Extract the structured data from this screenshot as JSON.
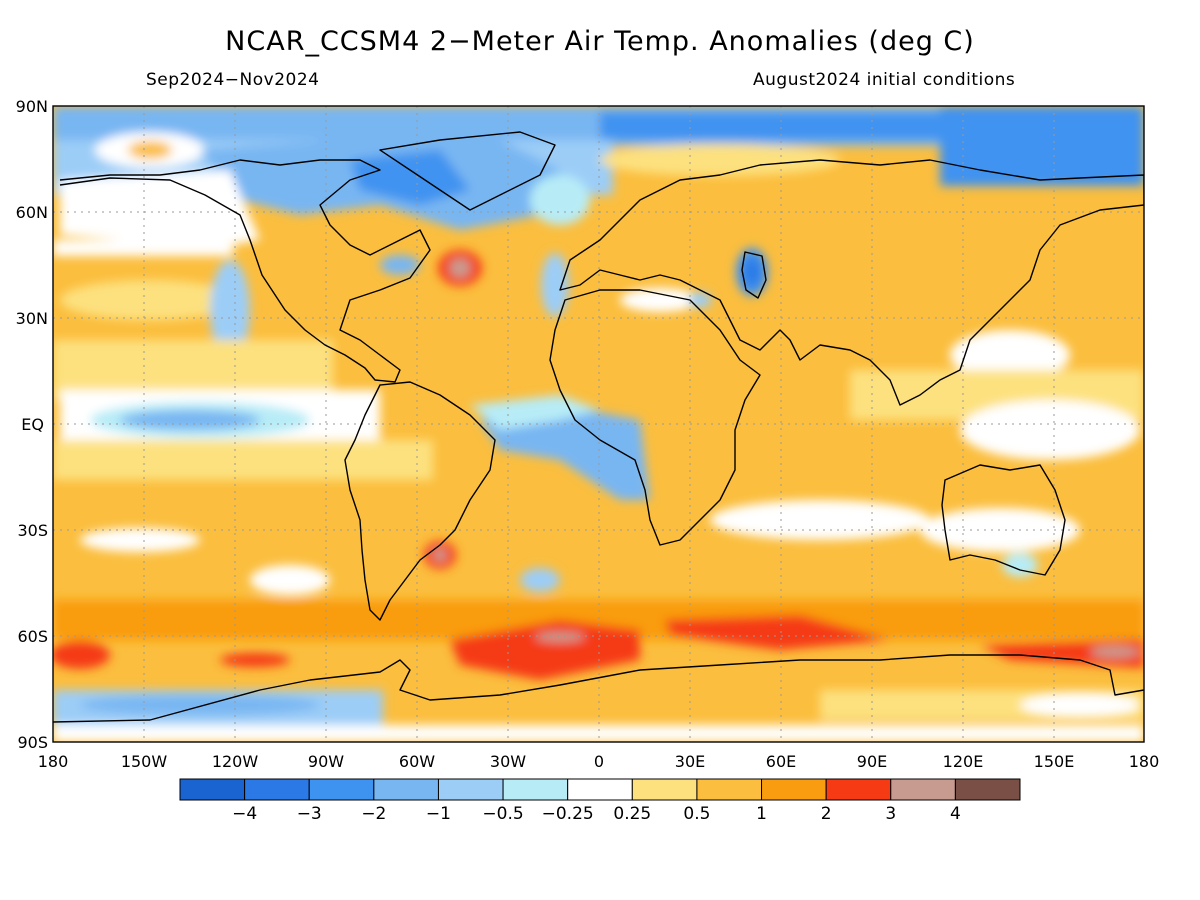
{
  "title": "NCAR_CCSM4 2−Meter Air Temp. Anomalies (deg C)",
  "period": "Sep2024−Nov2024",
  "initial_conditions": "August2024 initial conditions",
  "lat_labels": [
    "90N",
    "60N",
    "30N",
    "EQ",
    "30S",
    "60S",
    "90S"
  ],
  "lon_labels": [
    "180",
    "150W",
    "120W",
    "90W",
    "60W",
    "30W",
    "0",
    "30E",
    "60E",
    "90E",
    "120E",
    "150E",
    "180"
  ],
  "colorbar": {
    "colors": [
      "#1a64d2",
      "#2a79e6",
      "#3f93f0",
      "#78b6f2",
      "#9ccdf7",
      "#b7ecf7",
      "#ffffff",
      "#fde17f",
      "#fbbe3e",
      "#f99c0f",
      "#f53a14",
      "#c89b90",
      "#7a4f45"
    ],
    "labels": [
      "−4",
      "−3",
      "−2",
      "−1",
      "−0.5",
      "−0.25",
      "0.25",
      "0.5",
      "1",
      "2",
      "3",
      "4"
    ]
  },
  "colors": {
    "ocean_light_blue": "#b7ecf7",
    "blue": "#78b6f2",
    "dark_blue": "#3f93f0",
    "light_orange": "#fde17f",
    "orange": "#fbbe3e",
    "deep_orange": "#f99c0f",
    "red": "#f53a14",
    "grey_pink": "#c89b90"
  }
}
